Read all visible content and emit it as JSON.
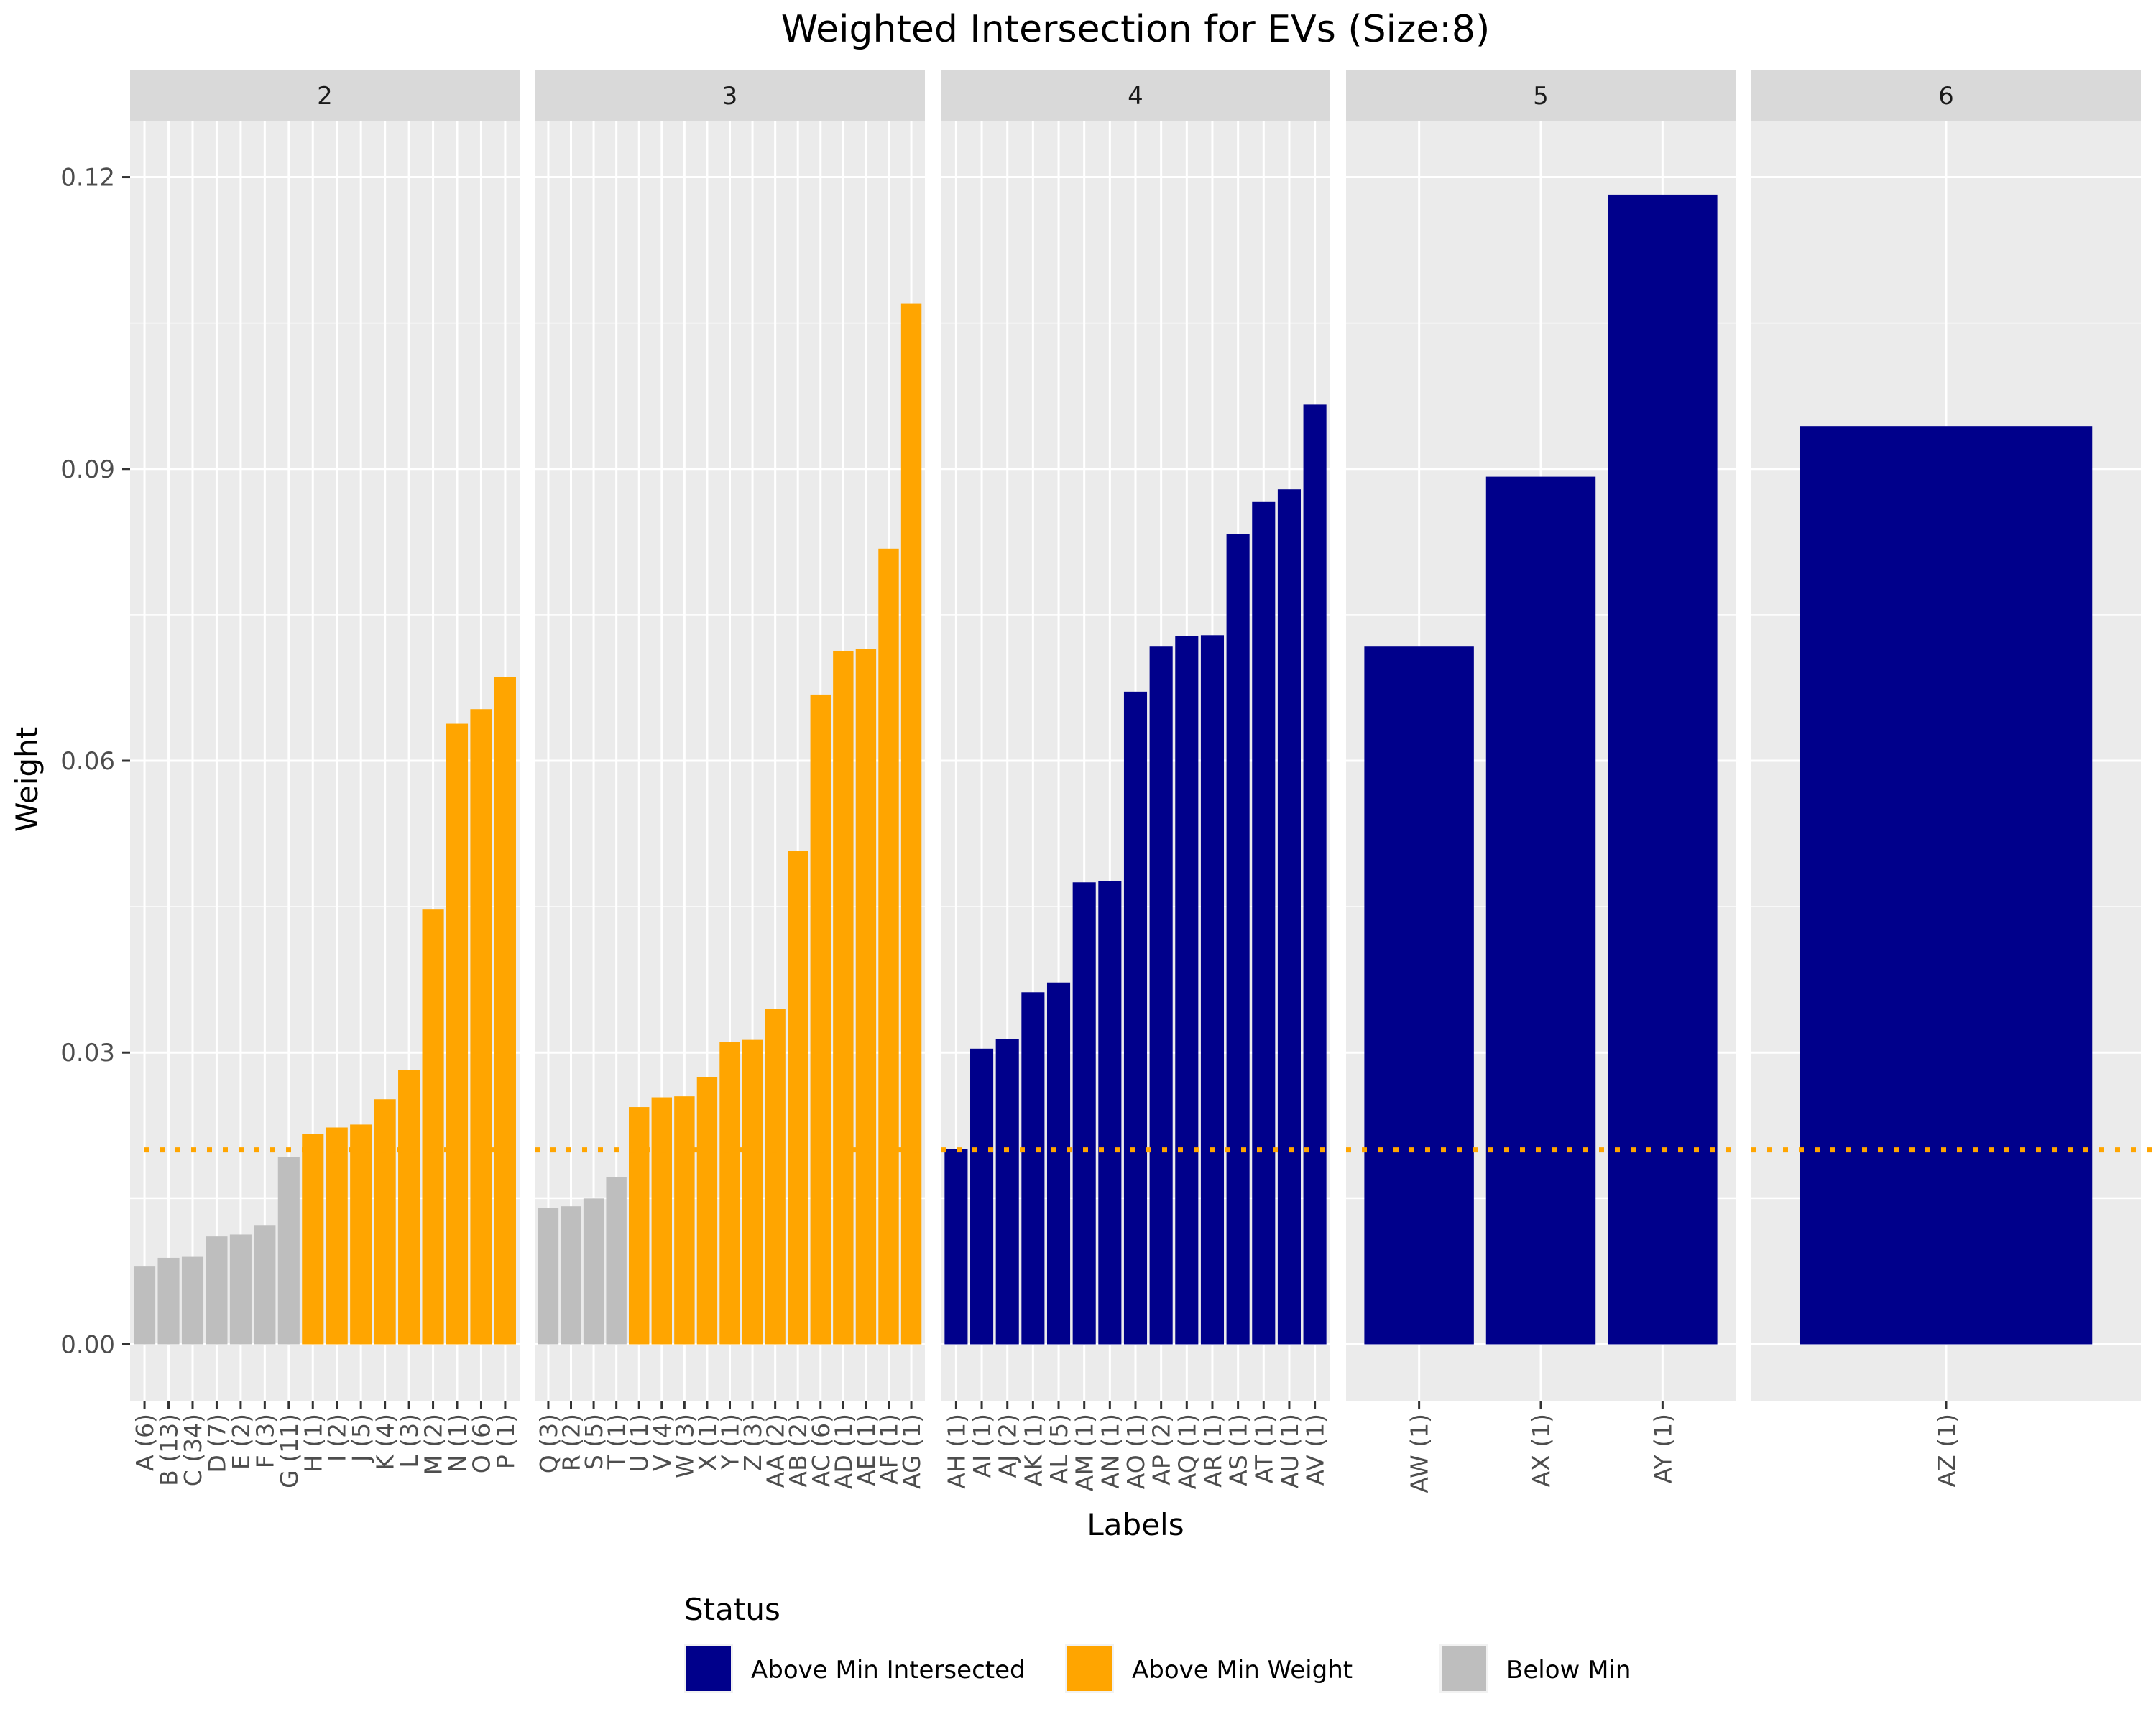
{
  "chart_data": {
    "type": "bar",
    "title": "Weighted Intersection for EVs (Size:8)",
    "xlabel": "Labels",
    "ylabel": "Weight",
    "ylim": [
      -0.0058,
      0.1258
    ],
    "yticks": [
      0.0,
      0.03,
      0.06,
      0.09,
      0.12
    ],
    "ytick_labels": [
      "0.00",
      "0.03",
      "0.06",
      "0.09",
      "0.12"
    ],
    "threshold": 0.02,
    "threshold_color": "#ffa500",
    "facet_layout": "columns",
    "legend": {
      "title": "Status",
      "placement": "bottom",
      "entries": [
        {
          "name": "Above Min Intersected",
          "color": "#00008b"
        },
        {
          "name": "Above Min Weight",
          "color": "#ffa500"
        },
        {
          "name": "Below Min",
          "color": "#bebebe"
        }
      ]
    },
    "facets": [
      {
        "label": "2",
        "bars": [
          {
            "category": "A (6)",
            "value": 0.008,
            "status": "Below Min"
          },
          {
            "category": "B (13)",
            "value": 0.0089,
            "status": "Below Min"
          },
          {
            "category": "C (34)",
            "value": 0.009,
            "status": "Below Min"
          },
          {
            "category": "D (7)",
            "value": 0.0111,
            "status": "Below Min"
          },
          {
            "category": "E (2)",
            "value": 0.0113,
            "status": "Below Min"
          },
          {
            "category": "F (3)",
            "value": 0.0122,
            "status": "Below Min"
          },
          {
            "category": "G (11)",
            "value": 0.0193,
            "status": "Below Min"
          },
          {
            "category": "H (1)",
            "value": 0.0216,
            "status": "Above Min Weight"
          },
          {
            "category": "I (2)",
            "value": 0.0223,
            "status": "Above Min Weight"
          },
          {
            "category": "J (5)",
            "value": 0.0226,
            "status": "Above Min Weight"
          },
          {
            "category": "K (4)",
            "value": 0.0252,
            "status": "Above Min Weight"
          },
          {
            "category": "L (3)",
            "value": 0.0282,
            "status": "Above Min Weight"
          },
          {
            "category": "M (2)",
            "value": 0.0447,
            "status": "Above Min Weight"
          },
          {
            "category": "N (1)",
            "value": 0.0638,
            "status": "Above Min Weight"
          },
          {
            "category": "O (6)",
            "value": 0.0653,
            "status": "Above Min Weight"
          },
          {
            "category": "P (1)",
            "value": 0.0686,
            "status": "Above Min Weight"
          }
        ]
      },
      {
        "label": "3",
        "bars": [
          {
            "category": "Q (3)",
            "value": 0.014,
            "status": "Below Min"
          },
          {
            "category": "R (2)",
            "value": 0.0142,
            "status": "Below Min"
          },
          {
            "category": "S (5)",
            "value": 0.015,
            "status": "Below Min"
          },
          {
            "category": "T (1)",
            "value": 0.0172,
            "status": "Below Min"
          },
          {
            "category": "U (1)",
            "value": 0.0244,
            "status": "Above Min Weight"
          },
          {
            "category": "V (4)",
            "value": 0.0254,
            "status": "Above Min Weight"
          },
          {
            "category": "W (3)",
            "value": 0.0255,
            "status": "Above Min Weight"
          },
          {
            "category": "X (1)",
            "value": 0.0275,
            "status": "Above Min Weight"
          },
          {
            "category": "Y (1)",
            "value": 0.0311,
            "status": "Above Min Weight"
          },
          {
            "category": "Z (3)",
            "value": 0.0313,
            "status": "Above Min Weight"
          },
          {
            "category": "AA (2)",
            "value": 0.0345,
            "status": "Above Min Weight"
          },
          {
            "category": "AB (2)",
            "value": 0.0507,
            "status": "Above Min Weight"
          },
          {
            "category": "AC (6)",
            "value": 0.0668,
            "status": "Above Min Weight"
          },
          {
            "category": "AD (1)",
            "value": 0.0713,
            "status": "Above Min Weight"
          },
          {
            "category": "AE (1)",
            "value": 0.0715,
            "status": "Above Min Weight"
          },
          {
            "category": "AF (1)",
            "value": 0.0818,
            "status": "Above Min Weight"
          },
          {
            "category": "AG (1)",
            "value": 0.107,
            "status": "Above Min Weight"
          }
        ]
      },
      {
        "label": "4",
        "bars": [
          {
            "category": "AH (1)",
            "value": 0.0201,
            "status": "Above Min Intersected"
          },
          {
            "category": "AI (1)",
            "value": 0.0304,
            "status": "Above Min Intersected"
          },
          {
            "category": "AJ (2)",
            "value": 0.0314,
            "status": "Above Min Intersected"
          },
          {
            "category": "AK (1)",
            "value": 0.0362,
            "status": "Above Min Intersected"
          },
          {
            "category": "AL (5)",
            "value": 0.0372,
            "status": "Above Min Intersected"
          },
          {
            "category": "AM (1)",
            "value": 0.0475,
            "status": "Above Min Intersected"
          },
          {
            "category": "AN (1)",
            "value": 0.0476,
            "status": "Above Min Intersected"
          },
          {
            "category": "AO (1)",
            "value": 0.0671,
            "status": "Above Min Intersected"
          },
          {
            "category": "AP (2)",
            "value": 0.0718,
            "status": "Above Min Intersected"
          },
          {
            "category": "AQ (1)",
            "value": 0.0728,
            "status": "Above Min Intersected"
          },
          {
            "category": "AR (1)",
            "value": 0.0729,
            "status": "Above Min Intersected"
          },
          {
            "category": "AS (1)",
            "value": 0.0833,
            "status": "Above Min Intersected"
          },
          {
            "category": "AT (1)",
            "value": 0.0866,
            "status": "Above Min Intersected"
          },
          {
            "category": "AU (1)",
            "value": 0.0879,
            "status": "Above Min Intersected"
          },
          {
            "category": "AV (1)",
            "value": 0.0966,
            "status": "Above Min Intersected"
          }
        ]
      },
      {
        "label": "5",
        "bars": [
          {
            "category": "AW (1)",
            "value": 0.0718,
            "status": "Above Min Intersected"
          },
          {
            "category": "AX (1)",
            "value": 0.0892,
            "status": "Above Min Intersected"
          },
          {
            "category": "AY (1)",
            "value": 0.1182,
            "status": "Above Min Intersected"
          }
        ]
      },
      {
        "label": "6",
        "bars": [
          {
            "category": "AZ (1)",
            "value": 0.0944,
            "status": "Above Min Intersected"
          }
        ]
      }
    ]
  }
}
